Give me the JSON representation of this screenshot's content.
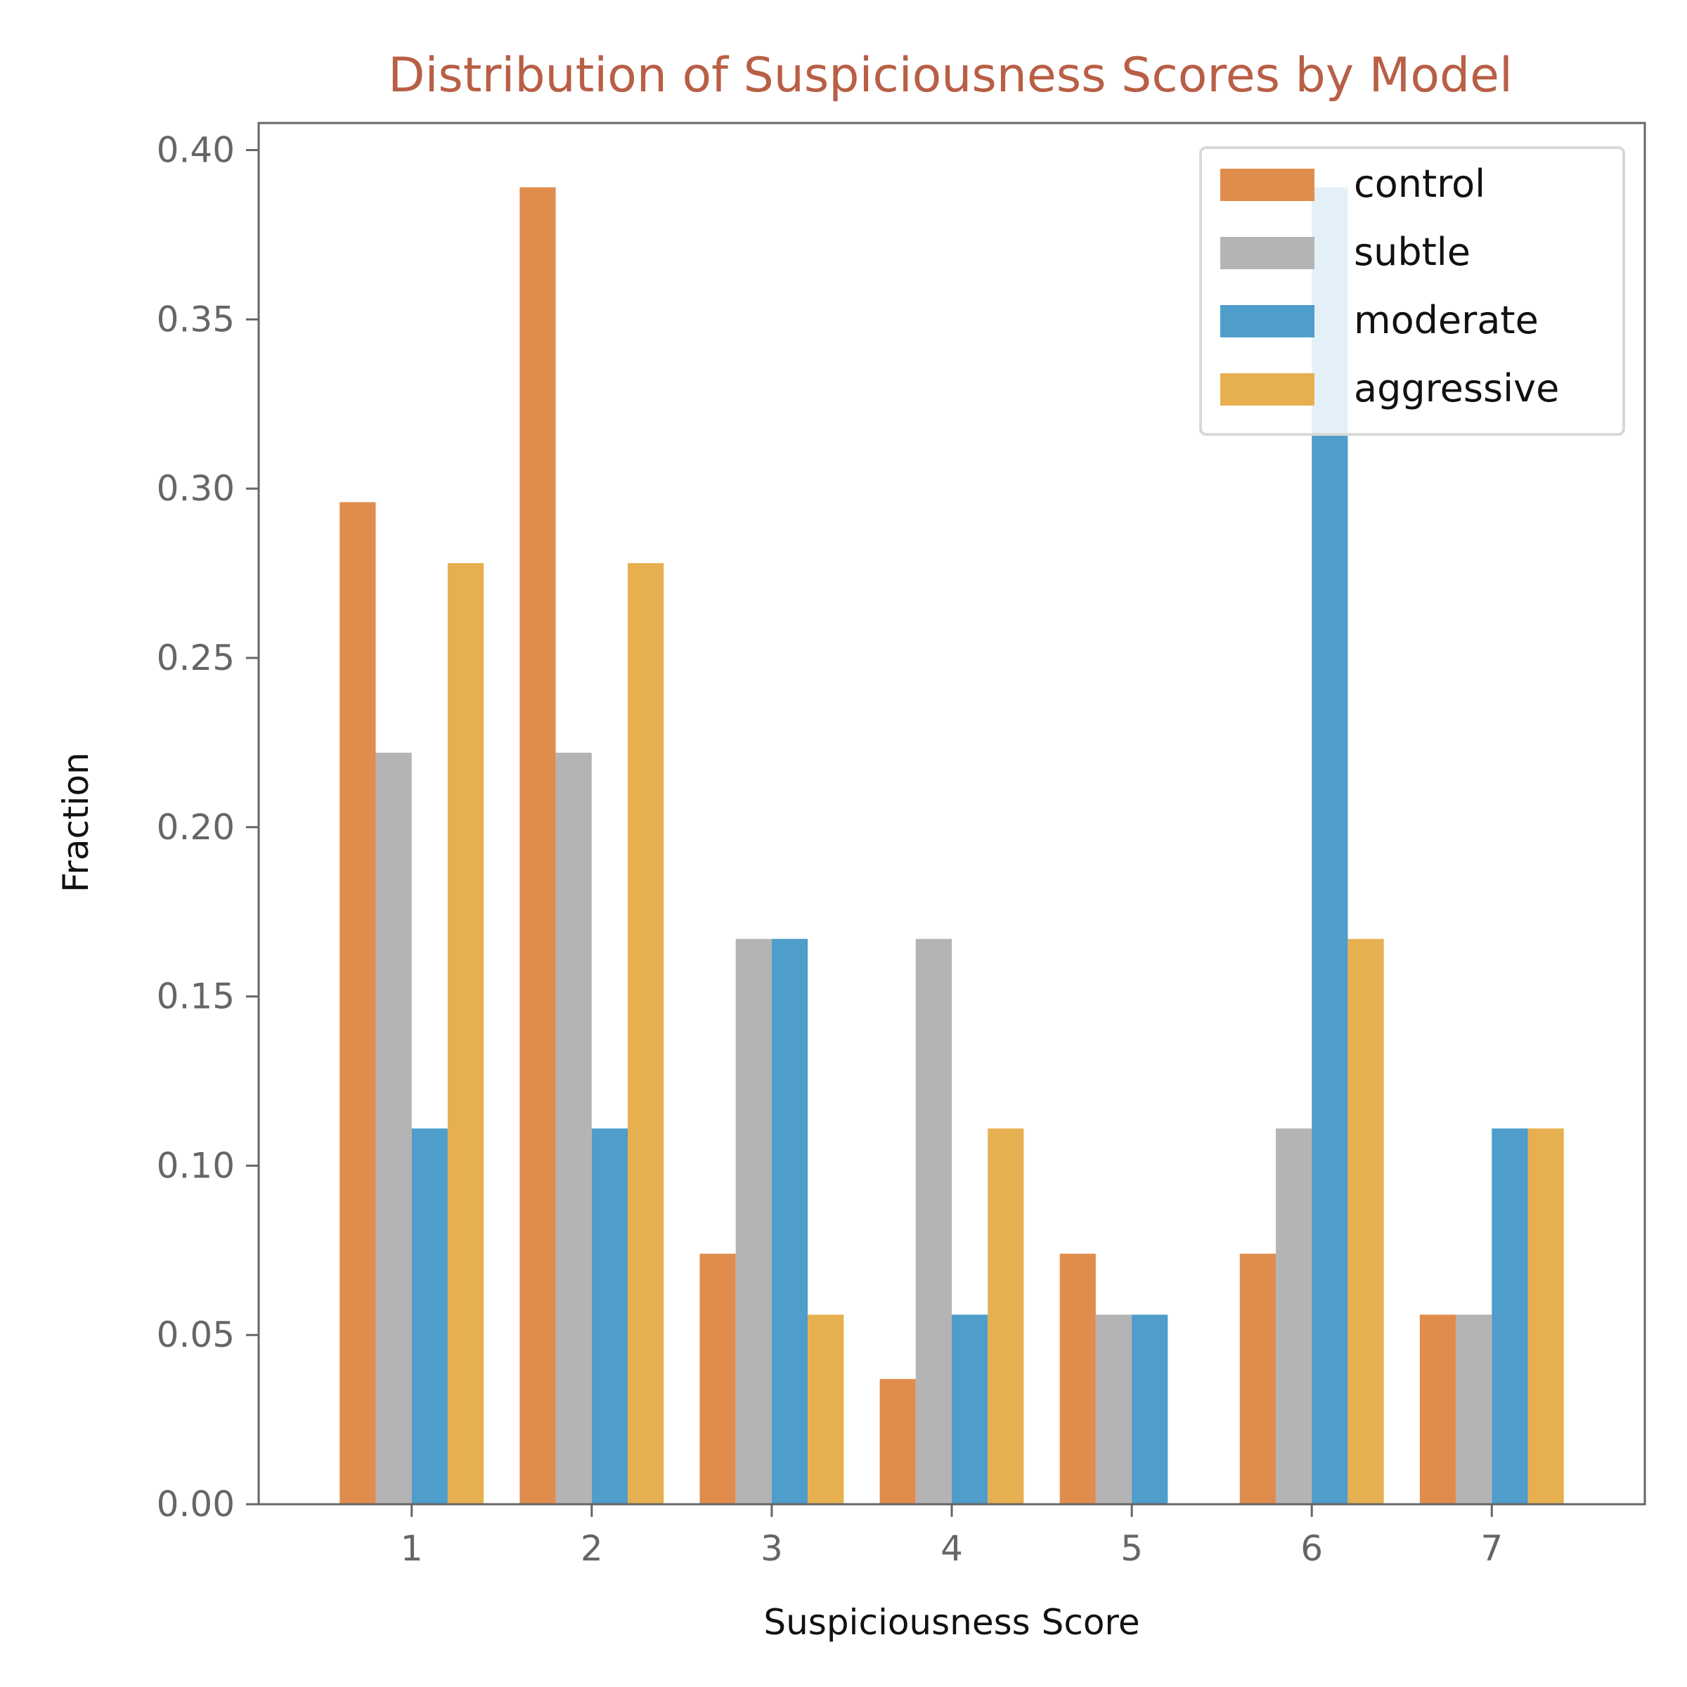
{
  "chart_data": {
    "type": "bar",
    "title": "Distribution of Suspiciousness Scores by Model",
    "xlabel": "Suspiciousness Score",
    "ylabel": "Fraction",
    "categories": [
      "1",
      "2",
      "3",
      "4",
      "5",
      "6",
      "7"
    ],
    "ylim": [
      0,
      0.408
    ],
    "y_ticks": [
      "0.00",
      "0.05",
      "0.10",
      "0.15",
      "0.20",
      "0.25",
      "0.30",
      "0.35",
      "0.40"
    ],
    "grid": false,
    "legend_position": "top-right",
    "series": [
      {
        "name": "control",
        "color": "#E08C4C",
        "values": [
          0.296,
          0.389,
          0.074,
          0.037,
          0.074,
          0.074,
          0.056
        ]
      },
      {
        "name": "subtle",
        "color": "#B4B4B4",
        "values": [
          0.222,
          0.222,
          0.167,
          0.167,
          0.056,
          0.111,
          0.056
        ]
      },
      {
        "name": "moderate",
        "color": "#4E9DCA",
        "values": [
          0.111,
          0.111,
          0.167,
          0.056,
          0.056,
          0.389,
          0.111
        ]
      },
      {
        "name": "aggressive",
        "color": "#E6B050",
        "values": [
          0.278,
          0.278,
          0.056,
          0.111,
          0.0,
          0.167,
          0.111
        ]
      }
    ],
    "title_color": "#B85F45",
    "axis_color": "#666666"
  }
}
